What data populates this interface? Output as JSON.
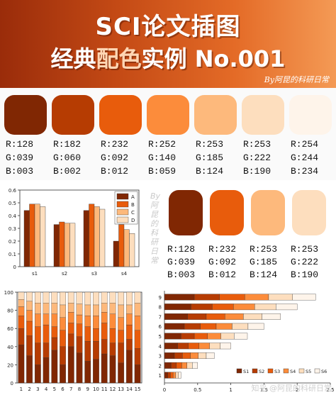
{
  "header": {
    "title_line1": "SCI论文插图",
    "title_line2_prefix": "经典",
    "title_line2_accent": "配色",
    "title_line2_suffix": "实例 No.001",
    "byline": "By阿昆的科研日常"
  },
  "palette": [
    {
      "hex": "#802703",
      "r": "R:128",
      "g": "G:039",
      "b": "B:003"
    },
    {
      "hex": "#B63C02",
      "r": "R:182",
      "g": "G:060",
      "b": "B:002"
    },
    {
      "hex": "#E85C0C",
      "r": "R:232",
      "g": "G:092",
      "b": "B:012"
    },
    {
      "hex": "#FC8C3B",
      "r": "R:252",
      "g": "G:140",
      "b": "B:059"
    },
    {
      "hex": "#FDB97C",
      "r": "R:253",
      "g": "G:185",
      "b": "B:124"
    },
    {
      "hex": "#FDDEBE",
      "r": "R:253",
      "g": "G:222",
      "b": "B:190"
    },
    {
      "hex": "#FEF4EA",
      "r": "R:254",
      "g": "G:244",
      "b": "B:234"
    }
  ],
  "palette_small": [
    {
      "hex": "#802703",
      "r": "R:128",
      "g": "G:039",
      "b": "B:003"
    },
    {
      "hex": "#E85C0C",
      "r": "R:232",
      "g": "G:092",
      "b": "B:012"
    },
    {
      "hex": "#FDB97C",
      "r": "R:253",
      "g": "G:185",
      "b": "B:124"
    },
    {
      "hex": "#FDDEBE",
      "r": "R:253",
      "g": "G:222",
      "b": "B:190"
    }
  ],
  "watermarks": {
    "vertical": "By阿昆的科研日常",
    "footer": "知乎 @阿昆的科研日常"
  },
  "chart_data": [
    {
      "type": "bar",
      "categories": [
        "s1",
        "s2",
        "s3",
        "s4"
      ],
      "ylim": [
        0,
        0.6
      ],
      "yticks": [
        0,
        0.1,
        0.2,
        0.3,
        0.4,
        0.5,
        0.6
      ],
      "legend_position": "top-right",
      "colors": [
        "#802703",
        "#E85C0C",
        "#FDB97C",
        "#FDDEBE"
      ],
      "series": [
        {
          "name": "A",
          "values": [
            0.44,
            0.33,
            0.44,
            0.2
          ]
        },
        {
          "name": "B",
          "values": [
            0.49,
            0.35,
            0.49,
            0.33
          ]
        },
        {
          "name": "C",
          "values": [
            0.49,
            0.34,
            0.47,
            0.29
          ]
        },
        {
          "name": "D",
          "values": [
            0.47,
            0.34,
            0.45,
            0.26
          ]
        }
      ]
    },
    {
      "type": "bar",
      "stacked": true,
      "categories": [
        "1",
        "2",
        "3",
        "4",
        "5",
        "6",
        "7",
        "8",
        "9",
        "10",
        "11",
        "12",
        "13",
        "14",
        "15"
      ],
      "ylim": [
        0,
        100
      ],
      "yticks": [
        0,
        20,
        40,
        60,
        80,
        100
      ],
      "colors": [
        "#802703",
        "#B63C02",
        "#E85C0C",
        "#FC8C3B",
        "#FDB97C",
        "#FDDEBE"
      ],
      "series": [
        {
          "values": [
            42,
            30,
            20,
            28,
            36,
            20,
            40,
            33,
            24,
            26,
            32,
            30,
            22,
            36,
            20
          ]
        },
        {
          "values": [
            18,
            22,
            24,
            16,
            14,
            20,
            14,
            18,
            22,
            20,
            16,
            14,
            22,
            12,
            18
          ]
        },
        {
          "values": [
            14,
            16,
            18,
            20,
            12,
            18,
            12,
            14,
            16,
            14,
            18,
            16,
            14,
            16,
            20
          ]
        },
        {
          "values": [
            10,
            12,
            14,
            12,
            14,
            14,
            12,
            10,
            12,
            14,
            12,
            16,
            14,
            12,
            16
          ]
        },
        {
          "values": [
            8,
            10,
            12,
            12,
            12,
            14,
            10,
            12,
            12,
            12,
            10,
            12,
            14,
            10,
            14
          ]
        },
        {
          "values": [
            8,
            10,
            12,
            12,
            12,
            14,
            12,
            13,
            14,
            14,
            12,
            12,
            14,
            14,
            12
          ]
        }
      ]
    },
    {
      "type": "bar",
      "orientation": "horizontal",
      "stacked": true,
      "categories": [
        "1",
        "2",
        "3",
        "4",
        "5",
        "6",
        "7",
        "8",
        "9"
      ],
      "xlim": [
        0,
        2.5
      ],
      "xticks": [
        0,
        0.5,
        1,
        1.5,
        2,
        2.5
      ],
      "legend_position": "bottom-right",
      "colors": [
        "#802703",
        "#B63C02",
        "#E85C0C",
        "#FC8C3B",
        "#FDDEBE",
        "#FEF4EA"
      ],
      "series": [
        {
          "name": "S1",
          "values": [
            0.05,
            0.1,
            0.15,
            0.2,
            0.25,
            0.3,
            0.35,
            0.4,
            0.45
          ]
        },
        {
          "name": "S2",
          "values": [
            0.04,
            0.08,
            0.12,
            0.16,
            0.2,
            0.24,
            0.28,
            0.32,
            0.38
          ]
        },
        {
          "name": "S3",
          "values": [
            0.04,
            0.08,
            0.12,
            0.16,
            0.2,
            0.24,
            0.28,
            0.32,
            0.38
          ]
        },
        {
          "name": "S4",
          "values": [
            0.04,
            0.08,
            0.12,
            0.16,
            0.2,
            0.24,
            0.28,
            0.32,
            0.36
          ]
        },
        {
          "name": "S5",
          "values": [
            0.04,
            0.08,
            0.12,
            0.16,
            0.2,
            0.24,
            0.28,
            0.32,
            0.36
          ]
        },
        {
          "name": "S6",
          "values": [
            0.04,
            0.08,
            0.12,
            0.16,
            0.2,
            0.24,
            0.28,
            0.32,
            0.35
          ]
        }
      ]
    }
  ]
}
